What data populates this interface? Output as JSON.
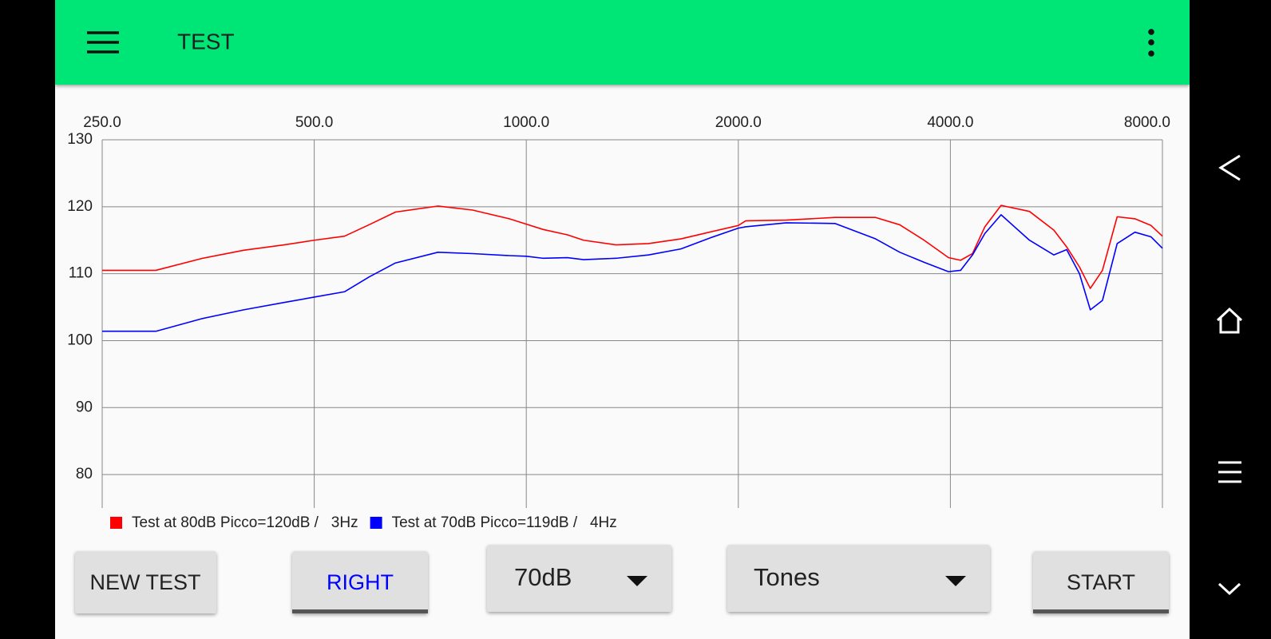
{
  "app_bar": {
    "title": "TEST"
  },
  "chart_data": {
    "type": "line",
    "x": [
      250,
      298,
      347,
      397,
      453,
      500,
      552,
      598,
      652,
      749,
      839,
      946,
      1000,
      1057,
      1144,
      1206,
      1341,
      1491,
      1658,
      1819,
      2000,
      2049,
      2340,
      2743,
      3132,
      3390,
      3671,
      3975,
      4136,
      4300,
      4477,
      4721,
      5180,
      5610,
      5850,
      6100,
      6320,
      6576,
      6900,
      7312,
      7708,
      8000
    ],
    "series": [
      {
        "name": "Test at 80dB Picco=120dB /   3Hz",
        "color": "#ff0000",
        "values": [
          110.5,
          110.5,
          112.3,
          113.5,
          114.3,
          115,
          115.6,
          117.3,
          119.2,
          120.1,
          119.5,
          118.2,
          117.4,
          116.6,
          115.8,
          115,
          114.3,
          114.5,
          115.2,
          116.2,
          117.2,
          117.9,
          118,
          118.4,
          118.4,
          117.3,
          115,
          112.4,
          112,
          113,
          117,
          120.2,
          119.3,
          116.5,
          114,
          111,
          107.8,
          110.5,
          118.5,
          118.2,
          117.2,
          115.6
        ]
      },
      {
        "name": "Test at 70dB Picco=119dB /   4Hz",
        "color": "#0000ff",
        "values": [
          101.4,
          101.4,
          103.3,
          104.6,
          105.7,
          106.5,
          107.3,
          109.5,
          111.6,
          113.2,
          113,
          112.7,
          112.6,
          112.3,
          112.4,
          112.1,
          112.3,
          112.8,
          113.7,
          115.3,
          116.8,
          117,
          117.6,
          117.5,
          115.2,
          113.2,
          111.7,
          110.3,
          110.5,
          112.8,
          116,
          118.8,
          115,
          112.8,
          113.6,
          110,
          104.6,
          106,
          114.5,
          116.2,
          115.5,
          113.8
        ]
      }
    ],
    "x_scale": "log",
    "xlim": [
      250,
      8000
    ],
    "xticks": [
      {
        "value": 250,
        "label": "250.0"
      },
      {
        "value": 500,
        "label": "500.0"
      },
      {
        "value": 1000,
        "label": "1000.0"
      },
      {
        "value": 2000,
        "label": "2000.0"
      },
      {
        "value": 4000,
        "label": "4000.0"
      },
      {
        "value": 8000,
        "label": "8000.0"
      }
    ],
    "ylim": [
      75,
      130
    ],
    "yticks": [
      80,
      90,
      100,
      110,
      120,
      130
    ],
    "grid": true
  },
  "controls": {
    "new_test": "NEW TEST",
    "ear": "RIGHT",
    "level": "70dB",
    "signal": "Tones",
    "start": "START"
  }
}
